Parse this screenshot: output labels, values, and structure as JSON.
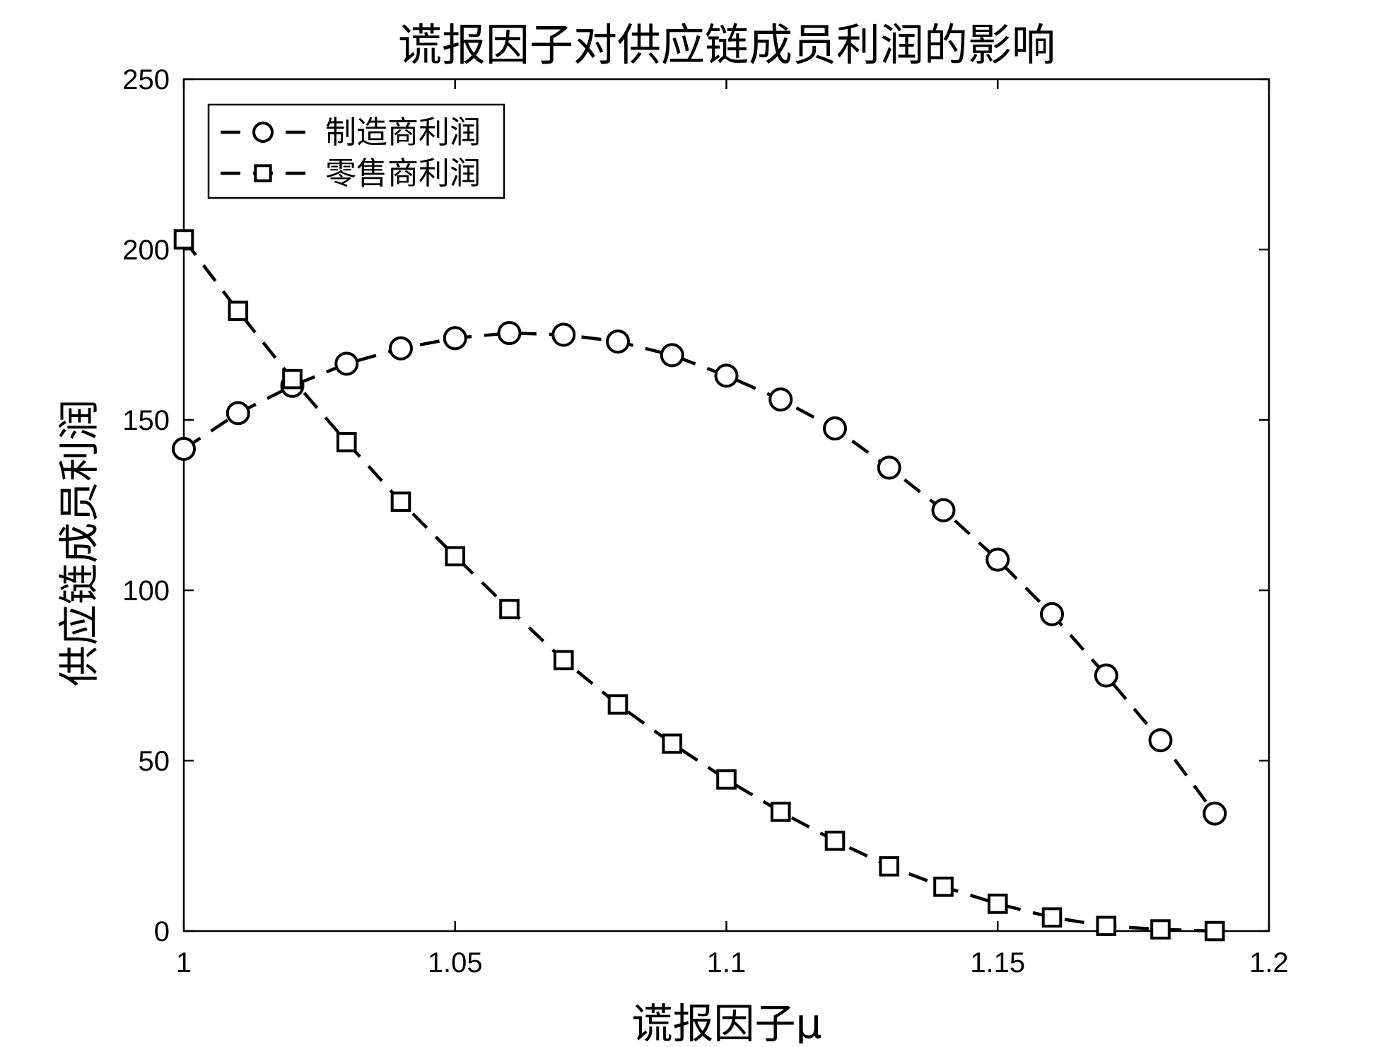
{
  "chart_data": {
    "type": "line",
    "title": "谎报因子对供应链成员利润的影响",
    "xlabel": "谎报因子μ",
    "ylabel": "供应链成员利润",
    "xlim": [
      1,
      1.2
    ],
    "ylim": [
      0,
      250
    ],
    "x_ticks": [
      "1",
      "1.05",
      "1.1",
      "1.15",
      "1.2"
    ],
    "y_ticks": [
      "0",
      "50",
      "100",
      "150",
      "200",
      "250"
    ],
    "grid": false,
    "legend_position": "top-left",
    "x": [
      1.0,
      1.01,
      1.02,
      1.03,
      1.04,
      1.05,
      1.06,
      1.07,
      1.08,
      1.09,
      1.1,
      1.11,
      1.12,
      1.13,
      1.14,
      1.15,
      1.16,
      1.17,
      1.18,
      1.19
    ],
    "series": [
      {
        "name": "制造商利润",
        "marker": "circle",
        "line_style": "dashed",
        "color": "#000000",
        "values": [
          141.5,
          152,
          160,
          166.5,
          171,
          174,
          175.5,
          175,
          173,
          169,
          163,
          156,
          147.5,
          136,
          123.5,
          109,
          93,
          75,
          56,
          34.5
        ]
      },
      {
        "name": "零售商利润",
        "marker": "square",
        "line_style": "dashed",
        "color": "#000000",
        "values": [
          203,
          182,
          162,
          143.5,
          126,
          110,
          94.5,
          79.5,
          66.5,
          55,
          44.5,
          35,
          26.5,
          19,
          13,
          8,
          4,
          1.5,
          0.5,
          0
        ]
      }
    ]
  }
}
